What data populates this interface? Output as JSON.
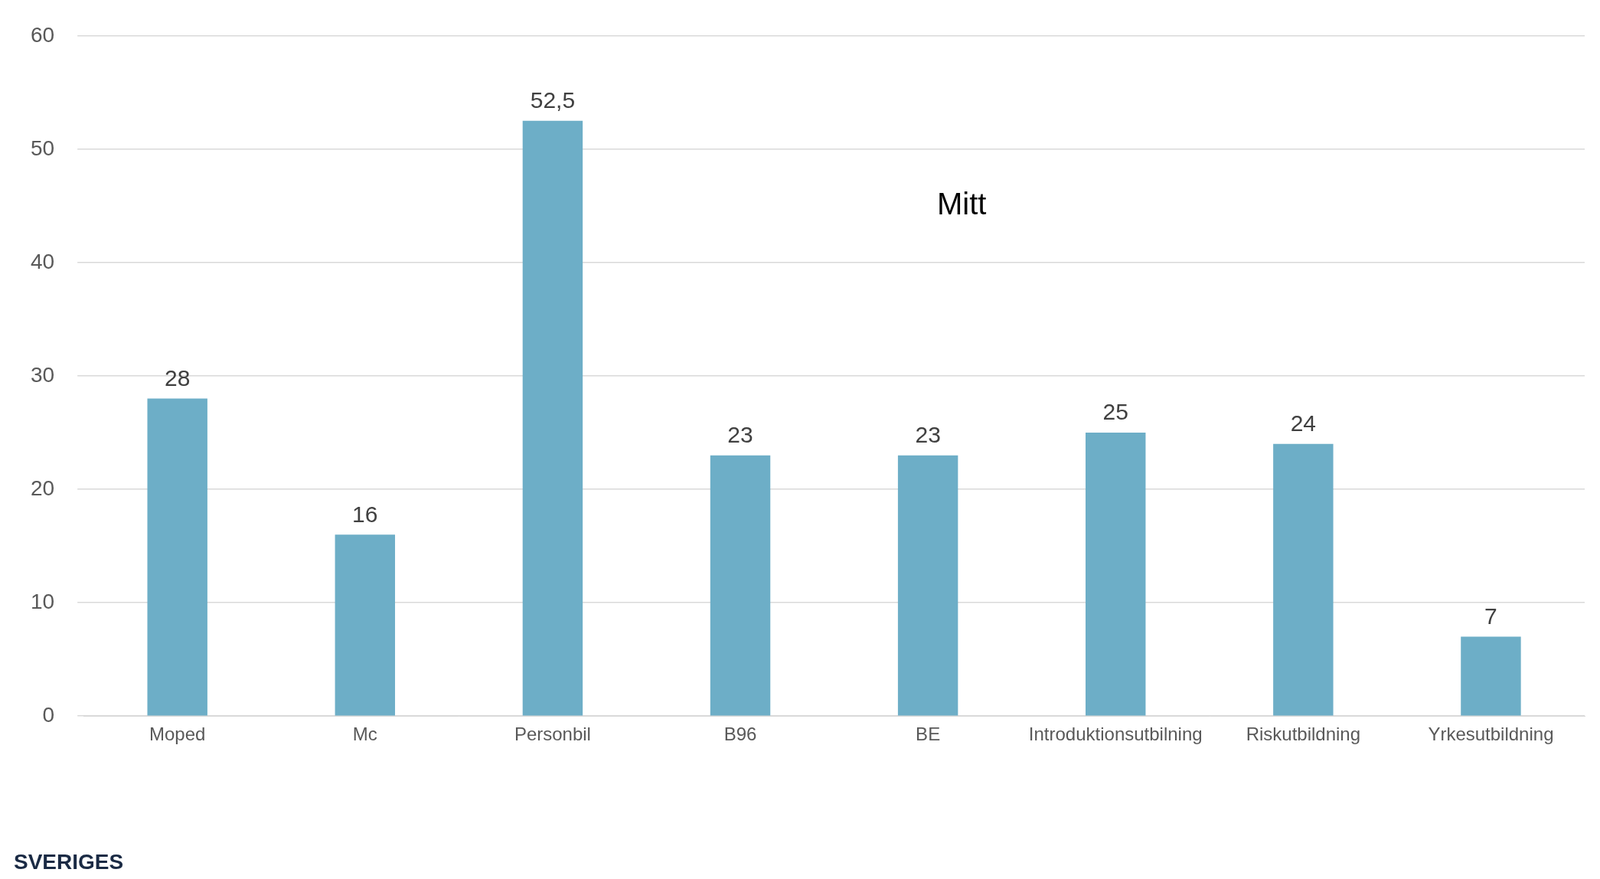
{
  "chart_data": {
    "type": "bar",
    "title": "Mitt",
    "categories": [
      "Moped",
      "Mc",
      "Personbil",
      "B96",
      "BE",
      "Introduktionsutbilning",
      "Riskutbildning",
      "Yrkesutbildning"
    ],
    "values": [
      28,
      16,
      52.5,
      23,
      23,
      25,
      24,
      7
    ],
    "value_labels": [
      "28",
      "16",
      "52,5",
      "23",
      "23",
      "25",
      "24",
      "7"
    ],
    "color": "#6daec7",
    "ylim": [
      0,
      60
    ],
    "yticks": [
      0,
      10,
      20,
      30,
      40,
      50,
      60
    ],
    "grid": true,
    "data_labels": true,
    "annotations": [
      "SVERIGES"
    ]
  }
}
